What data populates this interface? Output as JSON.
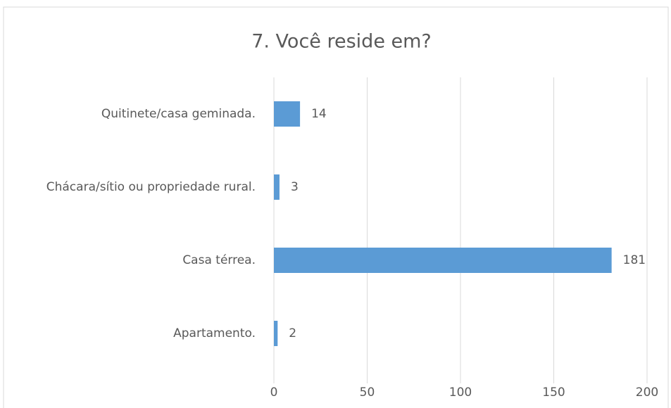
{
  "chart_data": {
    "type": "bar",
    "orientation": "horizontal",
    "title": "7. Você reside em?",
    "categories": [
      "Quitinete/casa geminada.",
      "Chácara/sítio ou propriedade rural.",
      "Casa térrea.",
      "Apartamento."
    ],
    "values": [
      14,
      3,
      181,
      2
    ],
    "color": "#5b9bd5",
    "xlim": [
      0,
      200
    ],
    "xticks": [
      0,
      50,
      100,
      150,
      200
    ],
    "grid": true
  }
}
